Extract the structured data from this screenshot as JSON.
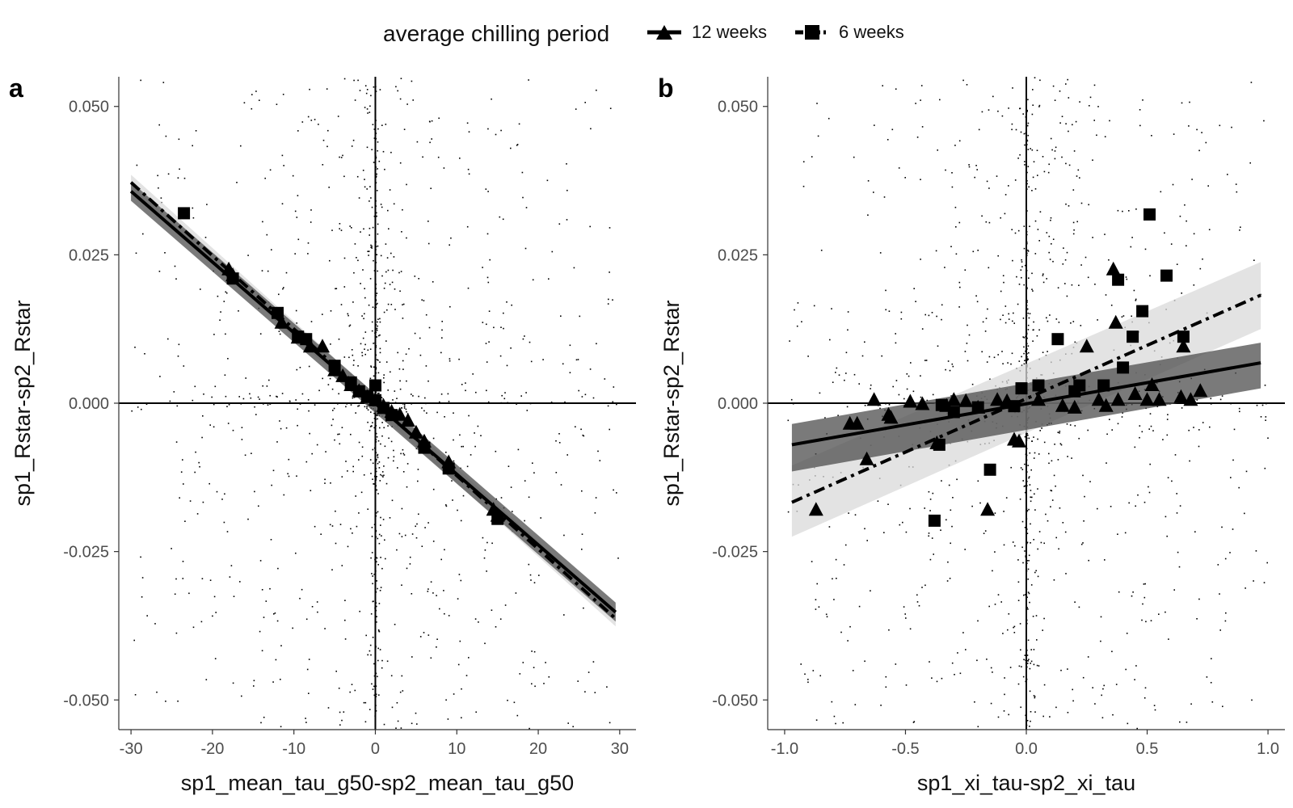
{
  "legend": {
    "title": "average chilling period",
    "items": [
      {
        "label": "12 weeks",
        "shape": "triangle",
        "line": "solid"
      },
      {
        "label": "6 weeks",
        "shape": "square",
        "line": "dashdot"
      }
    ]
  },
  "colors": {
    "ink": "#000000",
    "band_12": "#4d4d4d",
    "band_6": "#d9d9d9",
    "tick_text": "#4d4d4d"
  },
  "chart_data": [
    {
      "type": "scatter",
      "panel_label": "a",
      "xlabel": "sp1_mean_tau_g50-sp2_mean_tau_g50",
      "ylabel": "sp1_Rstar-sp2_Rstar",
      "xlim": [
        -31.5,
        32
      ],
      "ylim": [
        -0.055,
        0.055
      ],
      "x_ticks": [
        -30,
        -20,
        -10,
        0,
        10,
        20,
        30
      ],
      "x_tick_labels": [
        "-30",
        "-20",
        "-10",
        "0",
        "10",
        "20",
        "30"
      ],
      "y_ticks": [
        -0.05,
        -0.025,
        0,
        0.025,
        0.05
      ],
      "y_tick_labels": [
        "-0.050",
        "-0.025",
        "0.000",
        "0.025",
        "0.050"
      ],
      "reference_lines": {
        "x": 0,
        "y": 0
      },
      "grid": false,
      "background_points": {
        "description_free": true,
        "count": 1200,
        "x_spread": 30,
        "y_spread": 0.055
      },
      "series": [
        {
          "name": "12 weeks",
          "marker": "triangle",
          "fit": {
            "x": [
              -30,
              29.5
            ],
            "y": [
              0.0357,
              -0.0352
            ],
            "ci_halfwidth": 0.0016,
            "line": "solid"
          },
          "points": [
            [
              -18,
              0.0225
            ],
            [
              -17.5,
              0.0215
            ],
            [
              -11.5,
              0.0135
            ],
            [
              -9.5,
              0.011
            ],
            [
              -8,
              0.0095
            ],
            [
              -6.5,
              0.0095
            ],
            [
              -5,
              0.0055
            ],
            [
              -4,
              0.0045
            ],
            [
              -3,
              0.003
            ],
            [
              -2,
              0.002
            ],
            [
              -1,
              0.001
            ],
            [
              0,
              0.0005
            ],
            [
              1,
              -0.0005
            ],
            [
              2,
              -0.0015
            ],
            [
              3,
              -0.002
            ],
            [
              4,
              -0.003
            ],
            [
              5,
              -0.005
            ],
            [
              6,
              -0.0065
            ],
            [
              9,
              -0.01
            ],
            [
              14.5,
              -0.018
            ],
            [
              15,
              -0.019
            ]
          ]
        },
        {
          "name": "6 weeks",
          "marker": "square",
          "fit": {
            "x": [
              -30,
              29.5
            ],
            "y": [
              0.0372,
              -0.0363
            ],
            "ci_halfwidth": 0.0013,
            "line": "dashdot"
          },
          "points": [
            [
              -23.5,
              0.032
            ],
            [
              -17.5,
              0.021
            ],
            [
              -12,
              0.0152
            ],
            [
              -9.5,
              0.0112
            ],
            [
              -8.5,
              0.0108
            ],
            [
              -5,
              0.0063
            ],
            [
              -3,
              0.0035
            ],
            [
              -2,
              0.002
            ],
            [
              -1,
              0.0012
            ],
            [
              0,
              0.003
            ],
            [
              0,
              0.0005
            ],
            [
              1,
              -0.0008
            ],
            [
              2,
              -0.002
            ],
            [
              6,
              -0.0075
            ],
            [
              9,
              -0.011
            ],
            [
              15,
              -0.0195
            ]
          ]
        }
      ]
    },
    {
      "type": "scatter",
      "panel_label": "b",
      "xlabel": "sp1_xi_tau-sp2_xi_tau",
      "ylabel": "sp1_Rstar-sp2_Rstar",
      "xlim": [
        -1.07,
        1.07
      ],
      "ylim": [
        -0.055,
        0.055
      ],
      "x_ticks": [
        -1.0,
        -0.5,
        0.0,
        0.5,
        1.0
      ],
      "x_tick_labels": [
        "-1.0",
        "-0.5",
        "0.0",
        "0.5",
        "1.0"
      ],
      "y_ticks": [
        -0.05,
        -0.025,
        0,
        0.025,
        0.05
      ],
      "y_tick_labels": [
        "-0.050",
        "-0.025",
        "0.000",
        "0.025",
        "0.050"
      ],
      "reference_lines": {
        "x": 0,
        "y": 0
      },
      "grid": false,
      "background_points": {
        "description_free": true,
        "count": 1200,
        "x_spread": 1.0,
        "y_spread": 0.055
      },
      "series": [
        {
          "name": "12 weeks",
          "marker": "triangle",
          "fit": {
            "x": [
              -0.97,
              0.97
            ],
            "y": [
              -0.007,
              0.0068
            ],
            "ci_lower": [
              -0.0115,
              0.0025
            ],
            "ci_upper": [
              -0.0035,
              0.0102
            ],
            "line": "solid"
          },
          "points": [
            [
              -0.87,
              -0.018
            ],
            [
              -0.73,
              -0.0035
            ],
            [
              -0.7,
              -0.0035
            ],
            [
              -0.66,
              -0.0095
            ],
            [
              -0.63,
              0.0005
            ],
            [
              -0.57,
              -0.002
            ],
            [
              -0.56,
              -0.0025
            ],
            [
              -0.48,
              0.0002
            ],
            [
              -0.43,
              -0.0002
            ],
            [
              -0.37,
              -0.0068
            ],
            [
              -0.33,
              -0.0005
            ],
            [
              -0.3,
              0.0005
            ],
            [
              -0.25,
              0.0003
            ],
            [
              -0.2,
              -0.0008
            ],
            [
              -0.16,
              -0.018
            ],
            [
              -0.12,
              0.0005
            ],
            [
              -0.08,
              0.0003
            ],
            [
              -0.05,
              -0.0062
            ],
            [
              -0.03,
              -0.0065
            ],
            [
              0.05,
              0.0005
            ],
            [
              0.15,
              -0.0005
            ],
            [
              0.2,
              -0.0008
            ],
            [
              0.25,
              0.0095
            ],
            [
              0.3,
              0.0005
            ],
            [
              0.33,
              -0.0005
            ],
            [
              0.36,
              0.0225
            ],
            [
              0.37,
              0.0135
            ],
            [
              0.38,
              0.0005
            ],
            [
              0.45,
              0.0015
            ],
            [
              0.5,
              0.0005
            ],
            [
              0.52,
              0.003
            ],
            [
              0.55,
              0.0005
            ],
            [
              0.64,
              0.001
            ],
            [
              0.65,
              0.0095
            ],
            [
              0.68,
              0.0005
            ],
            [
              0.72,
              0.002
            ]
          ]
        },
        {
          "name": "6 weeks",
          "marker": "square",
          "fit": {
            "x": [
              -0.97,
              0.97
            ],
            "y": [
              -0.0167,
              0.0182
            ],
            "ci_lower": [
              -0.0225,
              0.0125
            ],
            "ci_upper": [
              -0.0105,
              0.0238
            ],
            "line": "dashdot"
          },
          "points": [
            [
              -0.38,
              -0.0198
            ],
            [
              -0.36,
              -0.007
            ],
            [
              -0.35,
              -0.0003
            ],
            [
              -0.3,
              -0.0015
            ],
            [
              -0.2,
              -0.0007
            ],
            [
              -0.15,
              -0.0112
            ],
            [
              -0.05,
              -0.0005
            ],
            [
              -0.02,
              0.0025
            ],
            [
              0.05,
              0.003
            ],
            [
              0.13,
              0.0108
            ],
            [
              0.2,
              0.002
            ],
            [
              0.22,
              0.003
            ],
            [
              0.32,
              0.003
            ],
            [
              0.38,
              0.0208
            ],
            [
              0.4,
              0.006
            ],
            [
              0.44,
              0.0112
            ],
            [
              0.48,
              0.0155
            ],
            [
              0.51,
              0.0318
            ],
            [
              0.58,
              0.0215
            ],
            [
              0.65,
              0.0112
            ]
          ]
        }
      ]
    }
  ]
}
